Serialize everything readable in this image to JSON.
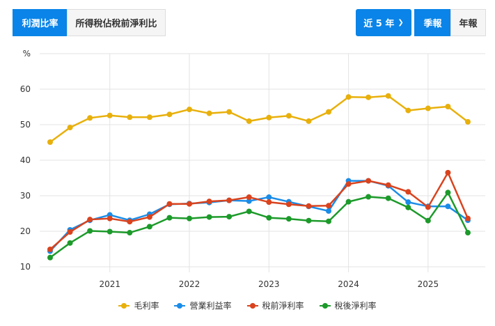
{
  "tabs": [
    {
      "label": "利潤比率",
      "active": true
    },
    {
      "label": "所得稅佔稅前淨利比",
      "active": false
    }
  ],
  "range": {
    "label": "近 5 年",
    "icon": "chevron-down-icon"
  },
  "period": [
    {
      "label": "季報",
      "active": true
    },
    {
      "label": "年報",
      "active": false
    }
  ],
  "colors": {
    "accent": "#0a84e8"
  },
  "chart_data": {
    "type": "line",
    "ylabel": "%",
    "ylim": [
      10,
      70
    ],
    "yticks": [
      10,
      20,
      30,
      40,
      50,
      60
    ],
    "grid": true,
    "legend_position": "bottom",
    "x": [
      "2020Q1",
      "2020Q2",
      "2020Q3",
      "2020Q4",
      "2021Q1",
      "2021Q2",
      "2021Q3",
      "2021Q4",
      "2022Q1",
      "2022Q2",
      "2022Q3",
      "2022Q4",
      "2023Q1",
      "2023Q2",
      "2023Q3",
      "2023Q4",
      "2024Q1",
      "2024Q2",
      "2024Q3",
      "2024Q4",
      "2025Q1",
      "2025Q2"
    ],
    "xticks": [
      {
        "label": "2021",
        "index": 3
      },
      {
        "label": "2022",
        "index": 7
      },
      {
        "label": "2023",
        "index": 11
      },
      {
        "label": "2024",
        "index": 15
      },
      {
        "label": "2025",
        "index": 19
      }
    ],
    "series": [
      {
        "name": "毛利率",
        "color": "#e8b00c",
        "values": [
          45.1,
          49.2,
          51.9,
          52.6,
          52.1,
          52.1,
          52.9,
          54.3,
          53.2,
          53.6,
          51.0,
          52.0,
          52.5,
          51.0,
          53.6,
          57.8,
          57.7,
          58.1,
          54.0,
          54.6,
          55.1,
          50.8
        ]
      },
      {
        "name": "營業利益率",
        "color": "#1a8ce8",
        "values": [
          14.4,
          20.4,
          23.1,
          24.6,
          23.1,
          24.8,
          27.6,
          27.8,
          28.1,
          28.7,
          28.5,
          29.6,
          28.3,
          27.0,
          25.7,
          34.2,
          34.2,
          32.8,
          28.2,
          27.0,
          27.0,
          23.1
        ]
      },
      {
        "name": "稅前淨利率",
        "color": "#d9431e",
        "values": [
          14.9,
          19.8,
          23.3,
          23.6,
          22.7,
          24.0,
          27.7,
          27.7,
          28.4,
          28.7,
          29.6,
          28.2,
          27.6,
          27.1,
          27.2,
          33.3,
          34.2,
          33.0,
          31.1,
          26.8,
          36.5,
          23.6
        ]
      },
      {
        "name": "稅後淨利率",
        "color": "#1c9a2a",
        "values": [
          12.6,
          16.7,
          20.1,
          19.9,
          19.6,
          21.3,
          23.8,
          23.6,
          24.0,
          24.1,
          25.6,
          23.8,
          23.5,
          23.0,
          22.8,
          28.3,
          29.7,
          29.3,
          26.7,
          23.0,
          30.9,
          19.6
        ]
      }
    ]
  }
}
